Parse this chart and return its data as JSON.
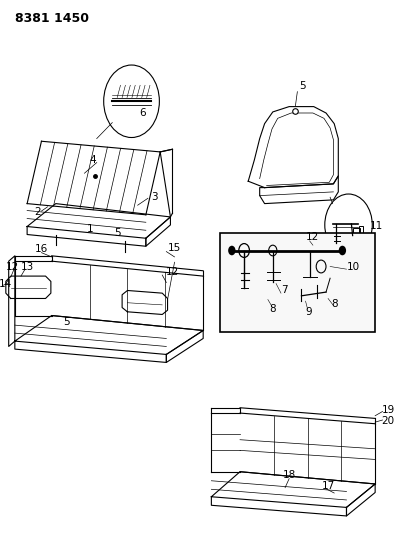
{
  "title": "8381 1450",
  "bg_color": "#ffffff",
  "line_color": "#000000",
  "title_fontsize": 9,
  "label_fontsize": 7.5
}
